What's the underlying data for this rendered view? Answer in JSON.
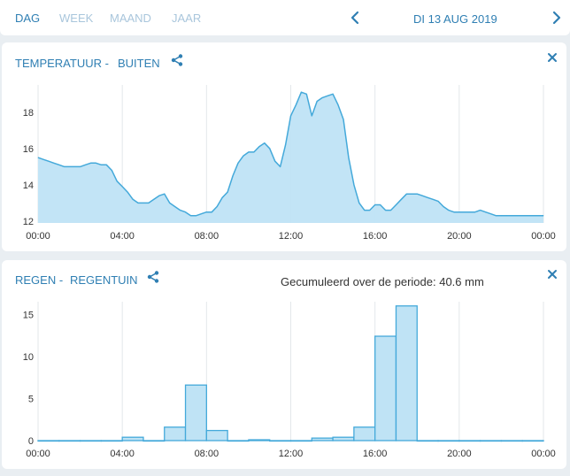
{
  "tabs": [
    {
      "label": "DAG",
      "active": true
    },
    {
      "label": "WEEK",
      "active": false
    },
    {
      "label": "MAAND",
      "active": false
    },
    {
      "label": "JAAR",
      "active": false
    }
  ],
  "date": "DI 13 AUG 2019",
  "colors": {
    "accent": "#2f7fb3",
    "series_line": "#44a9da",
    "series_fill": "#bfe3f5",
    "background": "#e9eef2"
  },
  "icons": {
    "prev": "chevron-left-icon",
    "next": "chevron-right-icon",
    "share": "share-icon",
    "close": "close-icon"
  },
  "temperature_card": {
    "title_prefix": "TEMPERATUUR -",
    "title_location": "BUITEN"
  },
  "rain_card": {
    "title_prefix": "REGEN -",
    "title_location": "REGENTUIN",
    "cumulative_text": "Gecumuleerd over de periode: 40.6 mm"
  },
  "chart_data": [
    {
      "type": "area",
      "title": "",
      "xlabel": "",
      "ylabel": "",
      "x_ticks": [
        "00:00",
        "04:00",
        "08:00",
        "12:00",
        "16:00",
        "20:00",
        "00:00"
      ],
      "y_ticks": [
        12,
        14,
        16,
        18
      ],
      "ylim": [
        11.9,
        19.5
      ],
      "grid": "vertical",
      "x": [
        0,
        0.25,
        0.5,
        0.75,
        1,
        1.25,
        1.5,
        1.75,
        2,
        2.25,
        2.5,
        2.75,
        3,
        3.25,
        3.5,
        3.75,
        4,
        4.25,
        4.5,
        4.75,
        5,
        5.25,
        5.5,
        5.75,
        6,
        6.25,
        6.5,
        6.75,
        7,
        7.25,
        7.5,
        7.75,
        8,
        8.25,
        8.5,
        8.75,
        9,
        9.25,
        9.5,
        9.75,
        10,
        10.25,
        10.5,
        10.75,
        11,
        11.25,
        11.5,
        11.75,
        12,
        12.25,
        12.5,
        12.75,
        13,
        13.25,
        13.5,
        13.75,
        14,
        14.25,
        14.5,
        14.75,
        15,
        15.25,
        15.5,
        15.75,
        16,
        16.25,
        16.5,
        16.75,
        17,
        17.25,
        17.5,
        17.75,
        18,
        18.25,
        18.5,
        18.75,
        19,
        19.25,
        19.5,
        19.75,
        20,
        20.25,
        20.5,
        20.75,
        21,
        21.25,
        21.5,
        21.75,
        22,
        22.25,
        22.5,
        22.75,
        23,
        23.25,
        23.5,
        23.75,
        24
      ],
      "series": [
        {
          "values": [
            15.5,
            15.4,
            15.3,
            15.2,
            15.1,
            15.0,
            15.0,
            15.0,
            15.0,
            15.1,
            15.2,
            15.2,
            15.1,
            15.1,
            14.8,
            14.2,
            13.9,
            13.6,
            13.2,
            13.0,
            13.0,
            13.0,
            13.2,
            13.4,
            13.5,
            13.0,
            12.8,
            12.6,
            12.5,
            12.3,
            12.3,
            12.4,
            12.5,
            12.5,
            12.8,
            13.3,
            13.6,
            14.5,
            15.2,
            15.6,
            15.8,
            15.8,
            16.1,
            16.3,
            16.0,
            15.3,
            15.0,
            16.2,
            17.8,
            18.4,
            19.1,
            19.0,
            17.8,
            18.6,
            18.8,
            18.9,
            19.0,
            18.4,
            17.6,
            15.5,
            14.0,
            13.0,
            12.6,
            12.6,
            12.9,
            12.9,
            12.6,
            12.6,
            12.9,
            13.2,
            13.5,
            13.5,
            13.5,
            13.4,
            13.3,
            13.2,
            13.1,
            12.8,
            12.6,
            12.5,
            12.5,
            12.5,
            12.5,
            12.5,
            12.6,
            12.5,
            12.4,
            12.3,
            12.3,
            12.3,
            12.3,
            12.3,
            12.3,
            12.3,
            12.3,
            12.3,
            12.3
          ]
        }
      ]
    },
    {
      "type": "bar",
      "title": "",
      "xlabel": "",
      "ylabel": "",
      "x_ticks": [
        "00:00",
        "04:00",
        "08:00",
        "12:00",
        "16:00",
        "20:00",
        "00:00"
      ],
      "y_ticks": [
        0,
        5,
        10,
        15
      ],
      "ylim": [
        0,
        16.5
      ],
      "grid": "vertical",
      "bin_hours": 1,
      "categories": [
        "00:00",
        "01:00",
        "02:00",
        "03:00",
        "04:00",
        "05:00",
        "06:00",
        "07:00",
        "08:00",
        "09:00",
        "10:00",
        "11:00",
        "12:00",
        "13:00",
        "14:00",
        "15:00",
        "16:00",
        "17:00",
        "18:00",
        "19:00",
        "20:00",
        "21:00",
        "22:00",
        "23:00"
      ],
      "values": [
        0,
        0,
        0,
        0,
        0.4,
        0,
        1.6,
        6.6,
        1.2,
        0,
        0.1,
        0,
        0,
        0.3,
        0.4,
        1.6,
        12.4,
        16.0,
        0,
        0,
        0,
        0,
        0,
        0
      ]
    }
  ]
}
